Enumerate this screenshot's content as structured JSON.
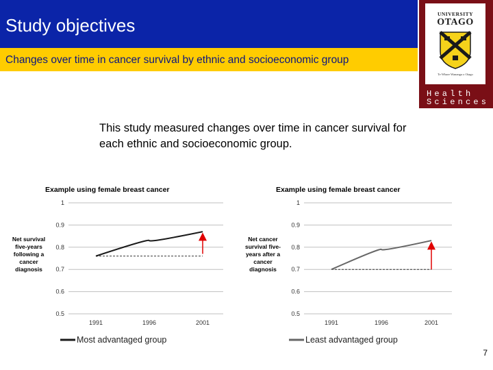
{
  "slide": {
    "title": "Study objectives",
    "subtitle": "Changes over time in cancer survival by ethnic and socioeconomic group",
    "body_text": "This study measured changes over time in cancer survival for each ethnic and socioeconomic group.",
    "page_number": "7"
  },
  "logo": {
    "university_word": "UNIVERSITY",
    "of_word": "of",
    "otago_word": "OTAGO",
    "motto": "Te Whare Wananga o Otago",
    "health_text": "Health",
    "sciences_text": "Sciences"
  },
  "colors": {
    "title_bar": "#0b24a8",
    "subtitle_bar": "#ffcc00",
    "logo_panel": "#7a0f16",
    "arrow": "#e00000",
    "advantaged_line": "#1a1a1a",
    "least_advantaged_line": "#666666"
  },
  "chart_data": [
    {
      "type": "line",
      "title": "Example using female breast cancer",
      "ylabel": "Net survival five-years following a cancer diagnosis",
      "ylim": [
        0.5,
        1
      ],
      "y_ticks": [
        "1",
        "0.9",
        "0.8",
        "0.7",
        "0.6",
        "0.5"
      ],
      "x_ticks": [
        "1991",
        "1996",
        "2001"
      ],
      "grid": true,
      "legend_position": "bottom",
      "series": [
        {
          "name": "Most advantaged group",
          "x": [
            1991,
            1996,
            2001
          ],
          "values": [
            0.76,
            0.83,
            0.87
          ]
        }
      ],
      "baseline": 0.76,
      "arrow": {
        "x": 2001,
        "from": 0.77,
        "to": 0.86
      }
    },
    {
      "type": "line",
      "title": "Example using female breast cancer",
      "ylabel": "Net cancer survival five-years after a cancer diagnosis",
      "ylim": [
        0.5,
        1
      ],
      "y_ticks": [
        "1",
        "0.9",
        "0.8",
        "0.7",
        "0.6",
        "0.5"
      ],
      "x_ticks": [
        "1991",
        "1996",
        "2001"
      ],
      "grid": true,
      "legend_position": "bottom",
      "series": [
        {
          "name": "Least advantaged group",
          "x": [
            1991,
            1996,
            2001
          ],
          "values": [
            0.7,
            0.79,
            0.83
          ]
        }
      ],
      "baseline": 0.7,
      "arrow": {
        "x": 2001,
        "from": 0.7,
        "to": 0.82
      }
    }
  ]
}
